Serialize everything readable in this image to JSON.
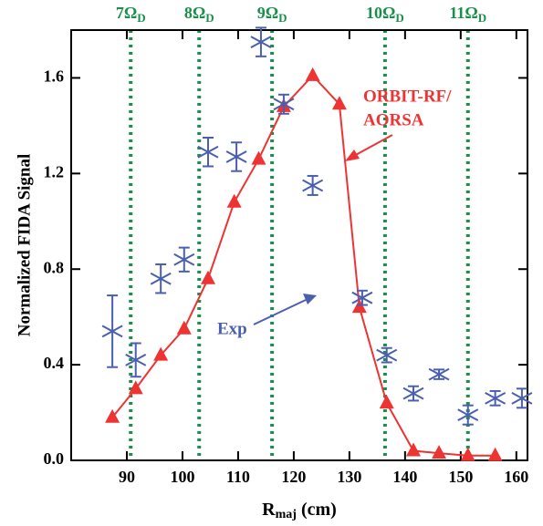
{
  "chart_data": {
    "type": "line",
    "x_label": [
      "R",
      "maj",
      " (cm)"
    ],
    "y_label": "Normalized FIDA Signal",
    "xlim": [
      80,
      162
    ],
    "ylim": [
      0,
      1.8
    ],
    "xticks": [
      90,
      100,
      110,
      120,
      130,
      140,
      150,
      160
    ],
    "yticks": [
      {
        "value": 0,
        "label": "0.0"
      },
      {
        "value": 0.4,
        "label": "0.4"
      },
      {
        "value": 0.8,
        "label": "0.8"
      },
      {
        "value": 1.2,
        "label": "1.2"
      },
      {
        "value": 1.6,
        "label": "1.6"
      }
    ],
    "harmonics": [
      {
        "x": 90.7,
        "main": "7Ω",
        "sub": "D"
      },
      {
        "x": 103.0,
        "main": "8Ω",
        "sub": "D"
      },
      {
        "x": 116.1,
        "main": "9Ω",
        "sub": "D"
      },
      {
        "x": 136.4,
        "main": "10Ω",
        "sub": "D"
      },
      {
        "x": 151.3,
        "main": "11Ω",
        "sub": "D"
      }
    ],
    "harmonic_color": "#1a8f4a",
    "series": [
      {
        "name": "ORBIT-RF/",
        "name2": "AORSA",
        "color": "#ee3333",
        "marker": "triangle",
        "x": [
          87.4,
          91.6,
          96.1,
          100.3,
          104.6,
          109.3,
          113.7,
          118.2,
          123.4,
          128.2,
          131.8,
          136.7,
          141.5,
          146.1,
          151.3,
          156.2
        ],
        "values": [
          0.18,
          0.3,
          0.44,
          0.55,
          0.76,
          1.08,
          1.26,
          1.48,
          1.61,
          1.49,
          0.64,
          0.24,
          0.04,
          0.03,
          0.02,
          0.02
        ]
      },
      {
        "name": "Exp",
        "color": "#4a5fb0",
        "marker": "errorbar",
        "x": [
          87.4,
          91.6,
          96.1,
          100.3,
          104.6,
          109.7,
          114.1,
          118.2,
          123.4,
          132.3,
          136.7,
          141.5,
          146.1,
          151.3,
          156.2,
          161.0
        ],
        "values": [
          0.54,
          0.42,
          0.76,
          0.84,
          1.29,
          1.27,
          1.75,
          1.49,
          1.15,
          0.68,
          0.44,
          0.28,
          0.36,
          0.19,
          0.26,
          0.26
        ],
        "errors": [
          0.15,
          0.07,
          0.06,
          0.05,
          0.06,
          0.06,
          0.06,
          0.04,
          0.04,
          0.03,
          0.03,
          0.03,
          0.02,
          0.04,
          0.03,
          0.04
        ]
      }
    ]
  }
}
